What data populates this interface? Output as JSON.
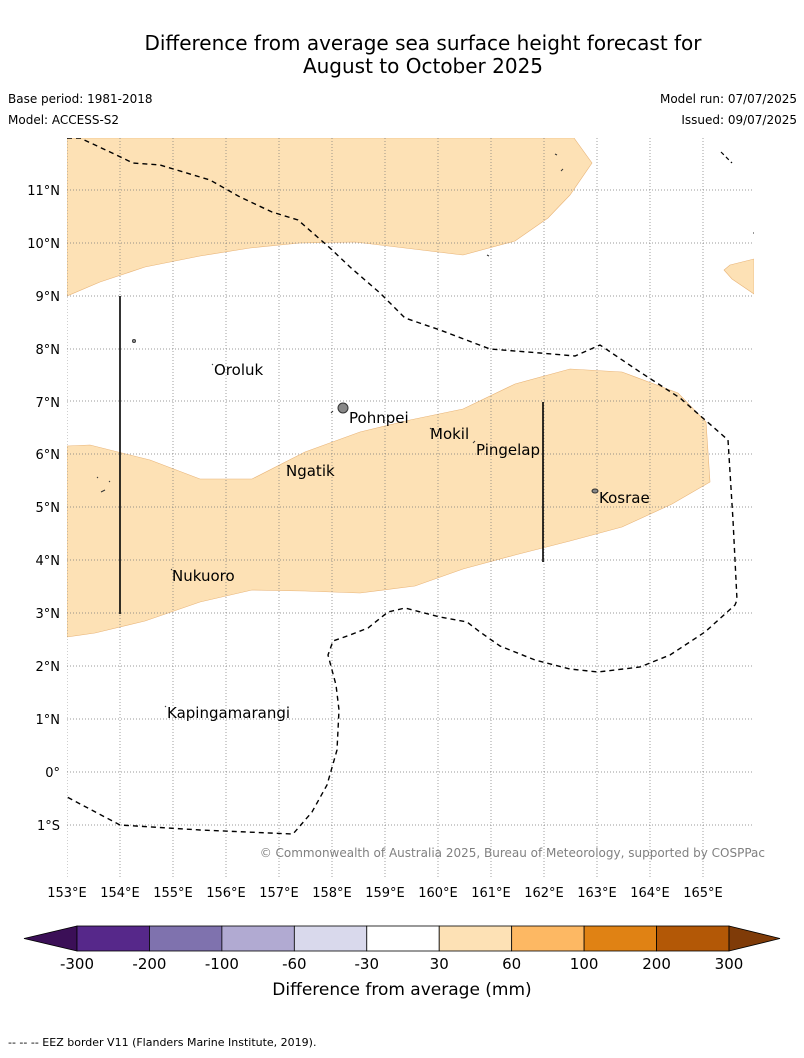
{
  "title_line1": "Difference from average sea surface height forecast for",
  "title_line2": "August to October 2025",
  "base_period": "Base period: 1981-2018",
  "model": "Model: ACCESS-S2",
  "model_run": "Model run: 07/07/2025",
  "issued": "Issued: 09/07/2025",
  "copyright": "© Commonwealth of Australia 2025, Bureau of Meteorology, supported by COSPPac",
  "lat_labels": [
    "11°N",
    "10°N",
    "9°N",
    "8°N",
    "7°N",
    "6°N",
    "5°N",
    "4°N",
    "3°N",
    "2°N",
    "1°N",
    "0°",
    "1°S"
  ],
  "lon_labels": [
    "153°E",
    "154°E",
    "155°E",
    "156°E",
    "157°E",
    "158°E",
    "159°E",
    "160°E",
    "161°E",
    "162°E",
    "163°E",
    "164°E",
    "165°E"
  ],
  "places": [
    "Oroluk",
    "Pohnpei",
    "Mokil",
    "Pingelap",
    "Ngatik",
    "Kosrae",
    "Nukuoro",
    "Kapingamarangi"
  ],
  "colorbar": {
    "label": "Difference from average (mm)",
    "ticks": [
      "-300",
      "-200",
      "-100",
      "-60",
      "-30",
      "30",
      "60",
      "100",
      "200",
      "300"
    ],
    "colors": [
      "#3b0f57",
      "#56288a",
      "#7f72ae",
      "#b1aad2",
      "#d9d9ec",
      "#ffffff",
      "#fde1b5",
      "#fdb863",
      "#e08214",
      "#b35806",
      "#7f3b08"
    ]
  },
  "legend_note": "--  --  -- EEZ border V11 (Flanders Marine Institute, 2019).",
  "colors": {
    "anomaly_30_60": "#fde1b5",
    "grid": "#777777"
  }
}
